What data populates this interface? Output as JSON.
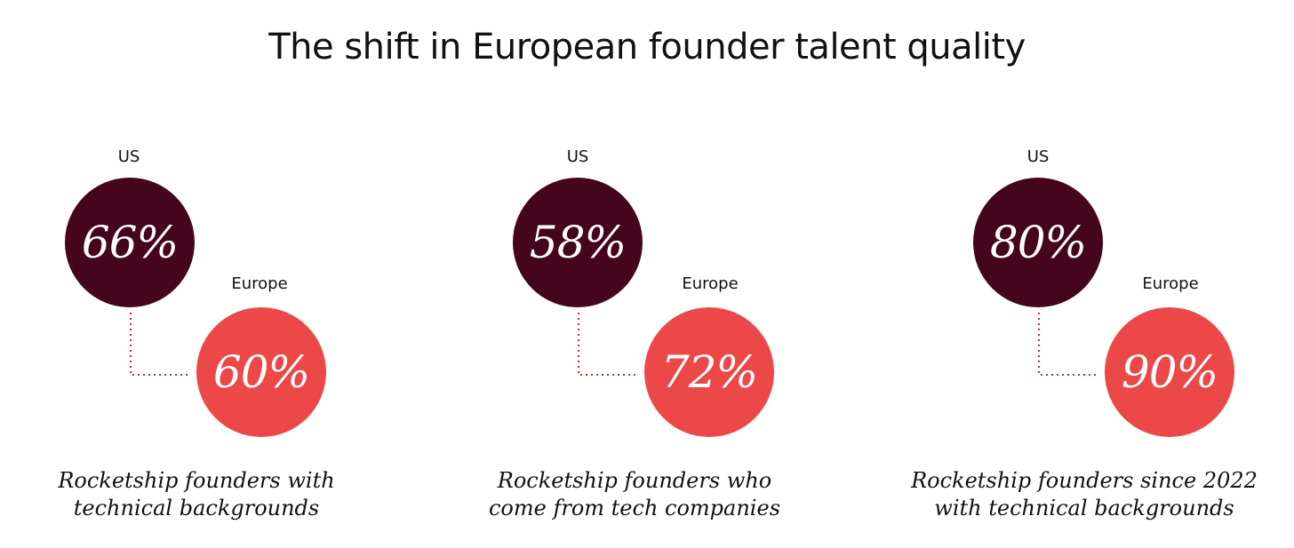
{
  "title": "The shift in European founder talent quality",
  "colors": {
    "us": "#45051c",
    "europe": "#ec4848",
    "connector": "#d2262b",
    "text": "#111111"
  },
  "chart_data": [
    {
      "type": "bubble-comparison",
      "us_label": "US",
      "europe_label": "Europe",
      "us_value": "66%",
      "europe_value": "60%",
      "values": {
        "US": 66,
        "Europe": 60
      },
      "caption": [
        "Rocketship founders with",
        "technical backgrounds"
      ]
    },
    {
      "type": "bubble-comparison",
      "us_label": "US",
      "europe_label": "Europe",
      "us_value": "58%",
      "europe_value": "72%",
      "values": {
        "US": 58,
        "Europe": 72
      },
      "caption": [
        "Rocketship founders who",
        "come from tech companies"
      ]
    },
    {
      "type": "bubble-comparison",
      "us_label": "US",
      "europe_label": "Europe",
      "us_value": "80%",
      "europe_value": "90%",
      "values": {
        "US": 80,
        "Europe": 90
      },
      "caption": [
        "Rocketship founders since 2022",
        "with technical backgrounds"
      ]
    }
  ]
}
